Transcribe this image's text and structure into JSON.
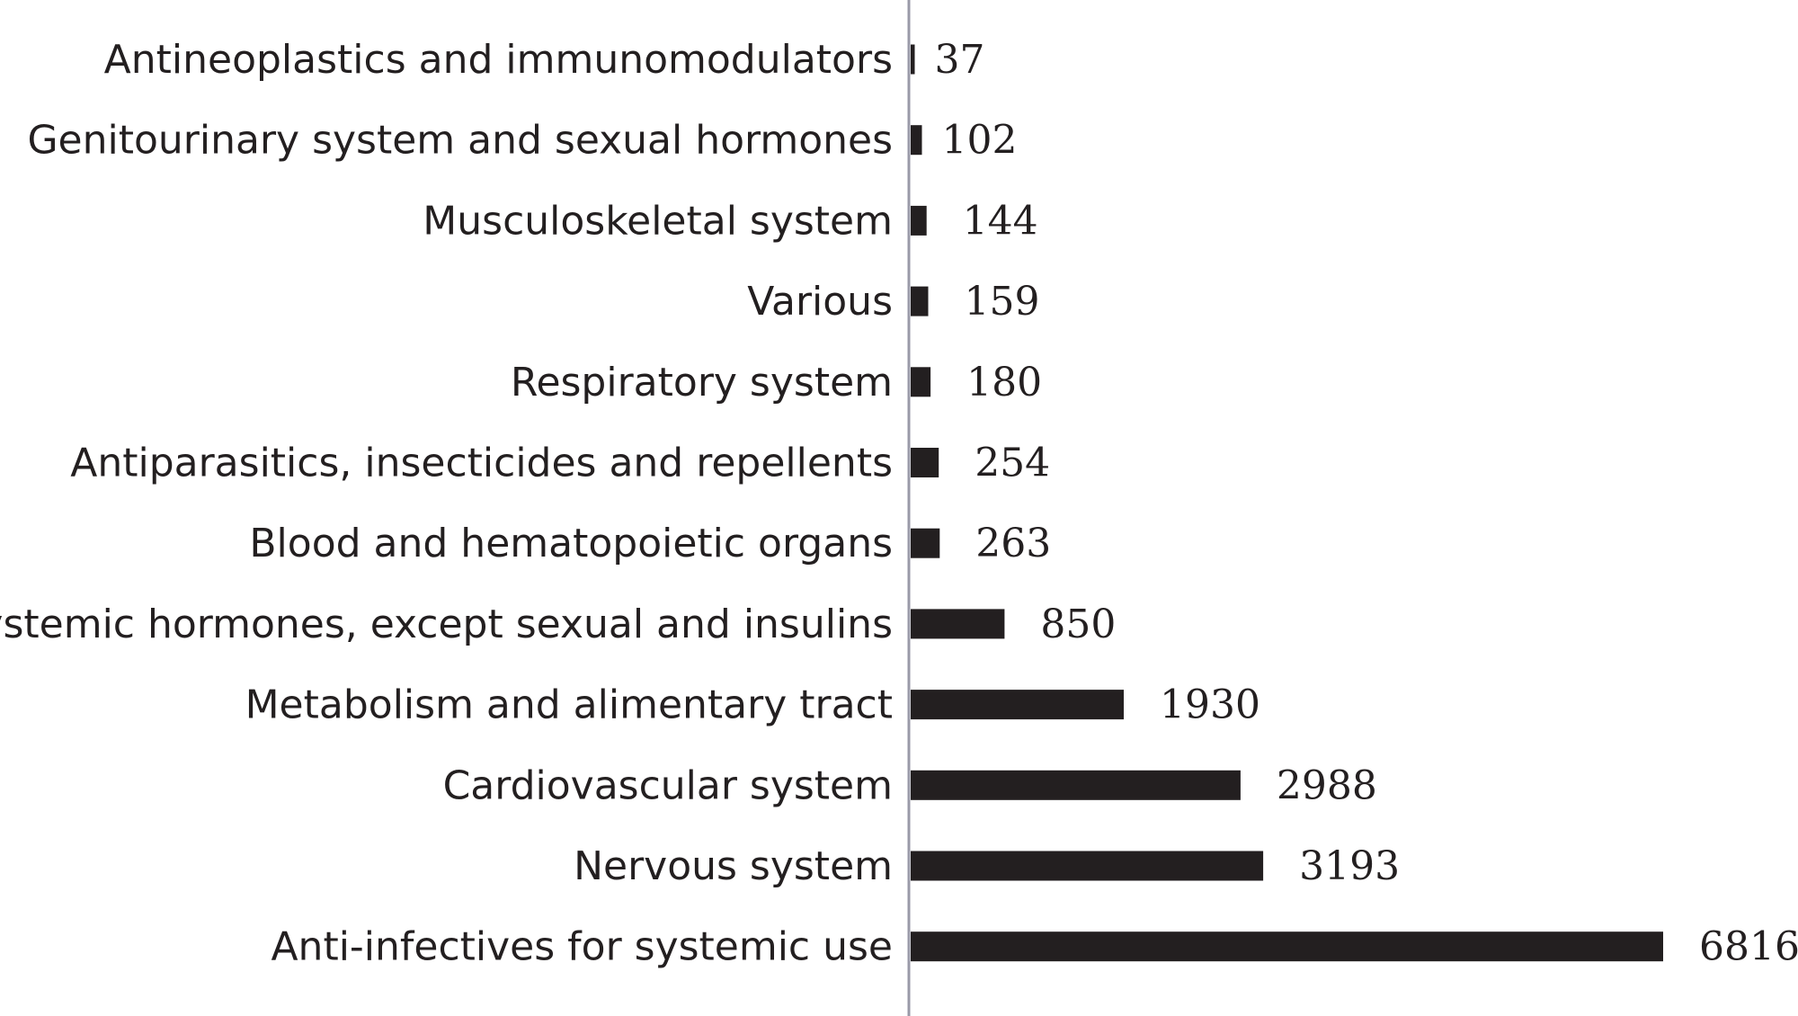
{
  "chart_data": {
    "type": "bar",
    "orientation": "horizontal",
    "title": "",
    "xlabel": "",
    "ylabel": "",
    "categories": [
      "Antineoplastics and immunomodulators",
      "Genitourinary system and sexual hormones",
      "Musculoskeletal system",
      "Various",
      "Respiratory system",
      "Antiparasitics, insecticides and repellents",
      "Blood and hematopoietic organs",
      "Systemic hormones, except sexual and insulins",
      "Metabolism and alimentary tract",
      "Cardiovascular system",
      "Nervous system",
      "Anti-infectives for systemic use"
    ],
    "values": [
      37,
      102,
      144,
      159,
      180,
      254,
      263,
      850,
      1930,
      2988,
      3193,
      6816
    ],
    "value_labels": [
      "37",
      "102",
      "144",
      "159",
      "180",
      "254",
      "263",
      "850",
      "1930",
      "2988",
      "3193",
      "6816"
    ],
    "xlim": [
      0,
      6816
    ],
    "grid": false,
    "legend": "none",
    "colors": {
      "bar": "#231f20",
      "axis": "#9a9aa8",
      "text": "#231f20"
    }
  }
}
